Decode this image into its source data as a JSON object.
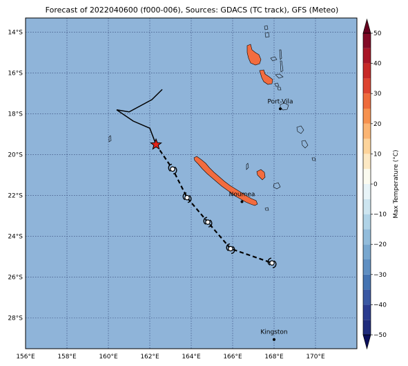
{
  "title": "Forecast of 2022040600 (f000-006), Sources: GDACS (TC track), GFS (Meteo)",
  "colors": {
    "ocean": "#8fb4d9",
    "land_hot": "#f26c3f",
    "gridline": "#2c3e70",
    "track": "#000000",
    "storm_marker": "#e2231a"
  },
  "map": {
    "lon_range": [
      156,
      172
    ],
    "lat_range": [
      -29.5,
      -13.3
    ],
    "grid": true,
    "lon_ticks": [
      {
        "value": 156,
        "label": "156°E"
      },
      {
        "value": 158,
        "label": "158°E"
      },
      {
        "value": 160,
        "label": "160°E"
      },
      {
        "value": 162,
        "label": "162°E"
      },
      {
        "value": 164,
        "label": "164°E"
      },
      {
        "value": 166,
        "label": "166°E"
      },
      {
        "value": 168,
        "label": "168°E"
      },
      {
        "value": 170,
        "label": "170°E"
      }
    ],
    "lat_ticks": [
      {
        "value": -14,
        "label": "14°S"
      },
      {
        "value": -16,
        "label": "16°S"
      },
      {
        "value": -18,
        "label": "18°S"
      },
      {
        "value": -20,
        "label": "20°S"
      },
      {
        "value": -22,
        "label": "22°S"
      },
      {
        "value": -24,
        "label": "24°S"
      },
      {
        "value": -26,
        "label": "26°S"
      },
      {
        "value": -28,
        "label": "28°S"
      }
    ],
    "cities": [
      {
        "name": "Port-Vila",
        "lon": 168.3,
        "lat": -17.75
      },
      {
        "name": "Noumea",
        "lon": 166.45,
        "lat": -22.3
      },
      {
        "name": "Kingston",
        "lon": 168.0,
        "lat": -29.05
      }
    ],
    "past_track": [
      {
        "lon": 162.6,
        "lat": -16.8
      },
      {
        "lon": 162.1,
        "lat": -17.3
      },
      {
        "lon": 161.0,
        "lat": -17.9
      },
      {
        "lon": 160.4,
        "lat": -17.8
      },
      {
        "lon": 161.2,
        "lat": -18.35
      },
      {
        "lon": 162.0,
        "lat": -18.7
      },
      {
        "lon": 162.3,
        "lat": -19.5
      }
    ],
    "current_position": {
      "lon": 162.3,
      "lat": -19.5
    },
    "forecast_track": [
      {
        "lon": 162.3,
        "lat": -19.5
      },
      {
        "lon": 163.1,
        "lat": -20.7
      },
      {
        "lon": 163.8,
        "lat": -22.1
      },
      {
        "lon": 164.8,
        "lat": -23.3
      },
      {
        "lon": 165.9,
        "lat": -24.6
      },
      {
        "lon": 167.9,
        "lat": -25.3
      }
    ],
    "forecast_points": [
      {
        "lon": 163.1,
        "lat": -20.7
      },
      {
        "lon": 163.8,
        "lat": -22.1
      },
      {
        "lon": 164.8,
        "lat": -23.3
      },
      {
        "lon": 165.9,
        "lat": -24.6
      },
      {
        "lon": 167.9,
        "lat": -25.3
      }
    ]
  },
  "colorbar": {
    "label": "Max Temperature (°C)",
    "min": -50,
    "max": 50,
    "ticks": [
      {
        "value": 50,
        "label": "50"
      },
      {
        "value": 40,
        "label": "40"
      },
      {
        "value": 30,
        "label": "30"
      },
      {
        "value": 20,
        "label": "20"
      },
      {
        "value": 10,
        "label": "10"
      },
      {
        "value": 0,
        "label": "0"
      },
      {
        "value": -10,
        "label": "−10"
      },
      {
        "value": -20,
        "label": "−20"
      },
      {
        "value": -30,
        "label": "−30"
      },
      {
        "value": -40,
        "label": "−40"
      },
      {
        "value": -50,
        "label": "−50"
      }
    ],
    "bands": [
      {
        "from": -50,
        "to": -45,
        "color": "#202c7c"
      },
      {
        "from": -45,
        "to": -40,
        "color": "#2a3b8f"
      },
      {
        "from": -40,
        "to": -35,
        "color": "#3a58a3"
      },
      {
        "from": -35,
        "to": -30,
        "color": "#4574b2"
      },
      {
        "from": -30,
        "to": -25,
        "color": "#5f8fc2"
      },
      {
        "from": -25,
        "to": -20,
        "color": "#78a7cf"
      },
      {
        "from": -20,
        "to": -15,
        "color": "#92bcdb"
      },
      {
        "from": -15,
        "to": -10,
        "color": "#b0d3e7"
      },
      {
        "from": -10,
        "to": -5,
        "color": "#cde5f0"
      },
      {
        "from": -5,
        "to": 0,
        "color": "#e8f4f8"
      },
      {
        "from": 0,
        "to": 5,
        "color": "#fbfbf0"
      },
      {
        "from": 5,
        "to": 10,
        "color": "#fde9c4"
      },
      {
        "from": 10,
        "to": 15,
        "color": "#fdd49b"
      },
      {
        "from": 15,
        "to": 20,
        "color": "#fbb574"
      },
      {
        "from": 20,
        "to": 25,
        "color": "#f6924f"
      },
      {
        "from": 25,
        "to": 30,
        "color": "#ee6c3c"
      },
      {
        "from": 30,
        "to": 35,
        "color": "#dd4430"
      },
      {
        "from": 35,
        "to": 40,
        "color": "#c72927"
      },
      {
        "from": 40,
        "to": 45,
        "color": "#a81526"
      },
      {
        "from": 45,
        "to": 50,
        "color": "#820a26"
      }
    ],
    "extend_low_color": "#0b0f5c",
    "extend_high_color": "#67001f"
  }
}
